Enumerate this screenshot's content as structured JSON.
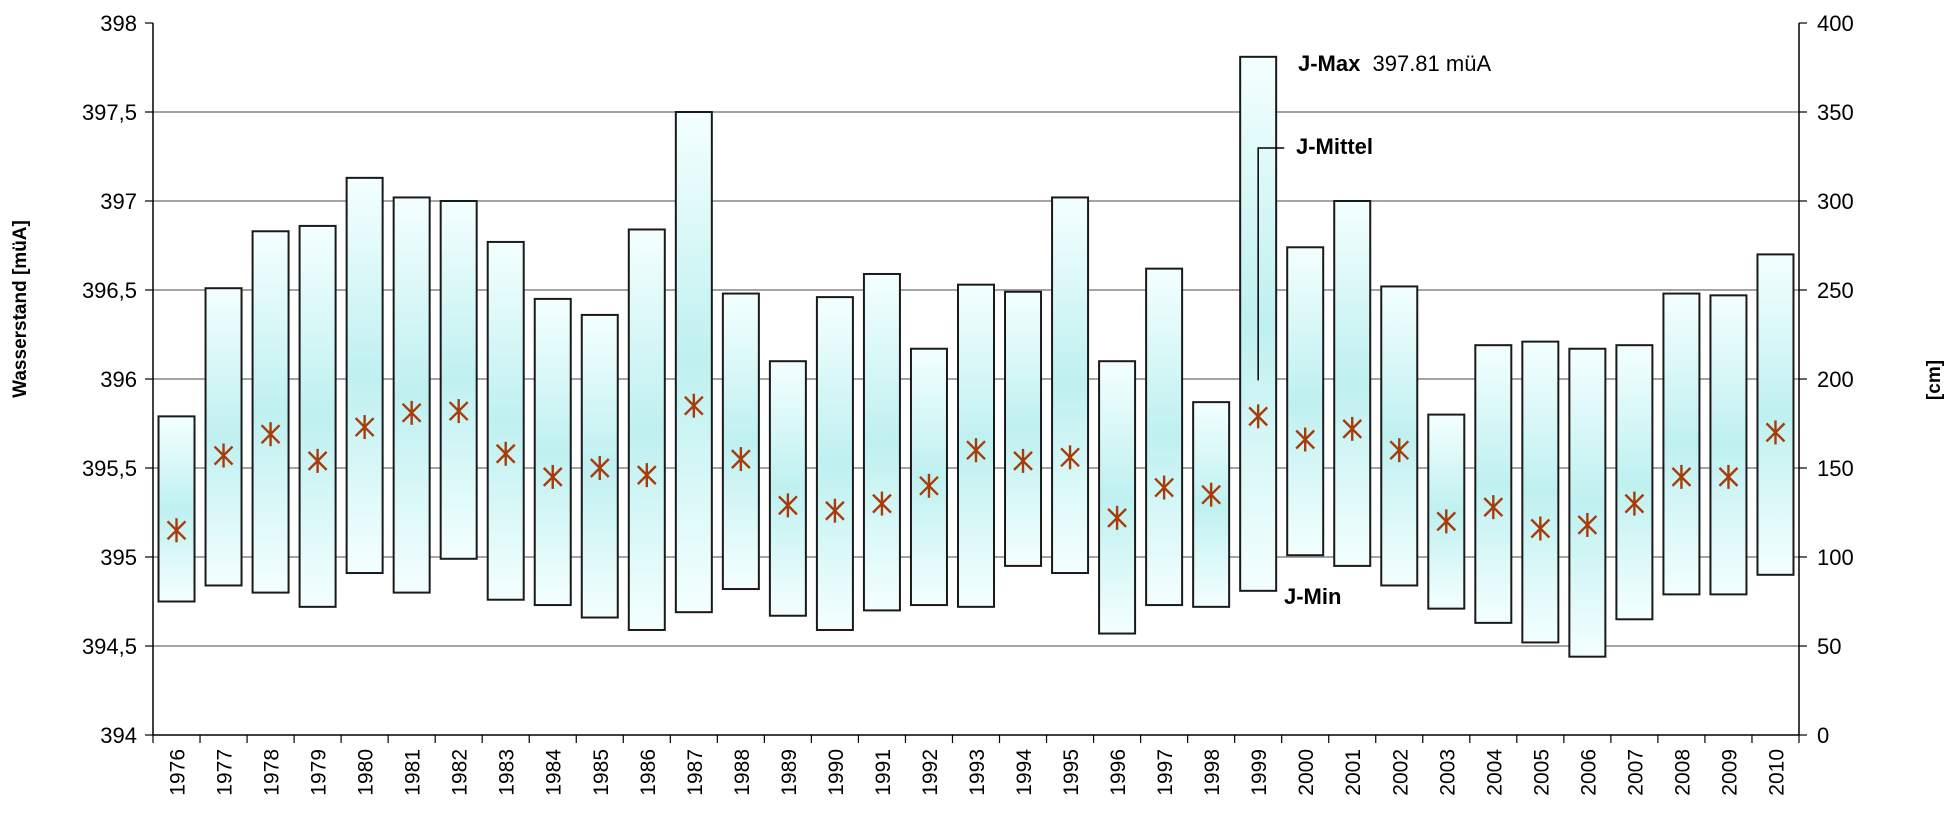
{
  "chart_data": {
    "type": "bar",
    "subtype": "floating-range-with-mean-marker",
    "title": "",
    "xlabel": "",
    "ylabel": "Wasserstand [müA]",
    "y2label": "[cm]",
    "ylim": [
      394,
      398
    ],
    "y2lim": [
      0,
      400
    ],
    "yticks": [
      "394",
      "394,5",
      "395",
      "395,5",
      "396",
      "396,5",
      "397",
      "397,5",
      "398"
    ],
    "y2ticks": [
      "0",
      "50",
      "100",
      "150",
      "200",
      "250",
      "300",
      "350",
      "400"
    ],
    "grid": "horizontal",
    "categories": [
      "1976",
      "1977",
      "1978",
      "1979",
      "1980",
      "1981",
      "1982",
      "1983",
      "1984",
      "1985",
      "1986",
      "1987",
      "1988",
      "1989",
      "1990",
      "1991",
      "1992",
      "1993",
      "1994",
      "1995",
      "1996",
      "1997",
      "1998",
      "1999",
      "2000",
      "2001",
      "2002",
      "2003",
      "2004",
      "2005",
      "2006",
      "2007",
      "2008",
      "2009",
      "2010"
    ],
    "series": [
      {
        "name": "J-Max",
        "values": [
          395.79,
          396.51,
          396.83,
          396.86,
          397.13,
          397.02,
          397.0,
          396.77,
          396.45,
          396.36,
          396.84,
          397.5,
          396.48,
          396.1,
          396.46,
          396.59,
          396.17,
          396.53,
          396.49,
          397.02,
          396.1,
          396.62,
          395.87,
          397.81,
          396.74,
          397.0,
          396.52,
          395.8,
          396.19,
          396.21,
          396.17,
          396.19,
          396.48,
          396.47,
          396.7
        ]
      },
      {
        "name": "J-Min",
        "values": [
          394.75,
          394.84,
          394.8,
          394.72,
          394.91,
          394.8,
          394.99,
          394.76,
          394.73,
          394.66,
          394.59,
          394.69,
          394.82,
          394.67,
          394.59,
          394.7,
          394.73,
          394.72,
          394.95,
          394.91,
          394.57,
          394.73,
          394.72,
          394.81,
          395.01,
          394.95,
          394.84,
          394.71,
          394.63,
          394.52,
          394.44,
          394.65,
          394.79,
          394.79,
          394.9
        ]
      },
      {
        "name": "J-Mittel",
        "values": [
          395.15,
          395.57,
          395.69,
          395.54,
          395.73,
          395.81,
          395.82,
          395.58,
          395.45,
          395.5,
          395.46,
          395.85,
          395.55,
          395.29,
          395.26,
          395.3,
          395.4,
          395.6,
          395.54,
          395.56,
          395.22,
          395.39,
          395.35,
          395.79,
          395.66,
          395.72,
          395.6,
          395.2,
          395.28,
          395.16,
          395.18,
          395.3,
          395.45,
          395.45,
          395.7
        ]
      }
    ],
    "annotations": {
      "max_label": "J-Max",
      "max_value": "397.81 müA",
      "mean_label": "J-Mittel",
      "min_label": "J-Min"
    },
    "colors": {
      "box_edge": "#1a1a1a",
      "box_fill_center": "#bff0f0",
      "box_fill_edge": "#f4ffff",
      "marker": "#a63c0a",
      "grid": "#6e6e6e"
    }
  }
}
